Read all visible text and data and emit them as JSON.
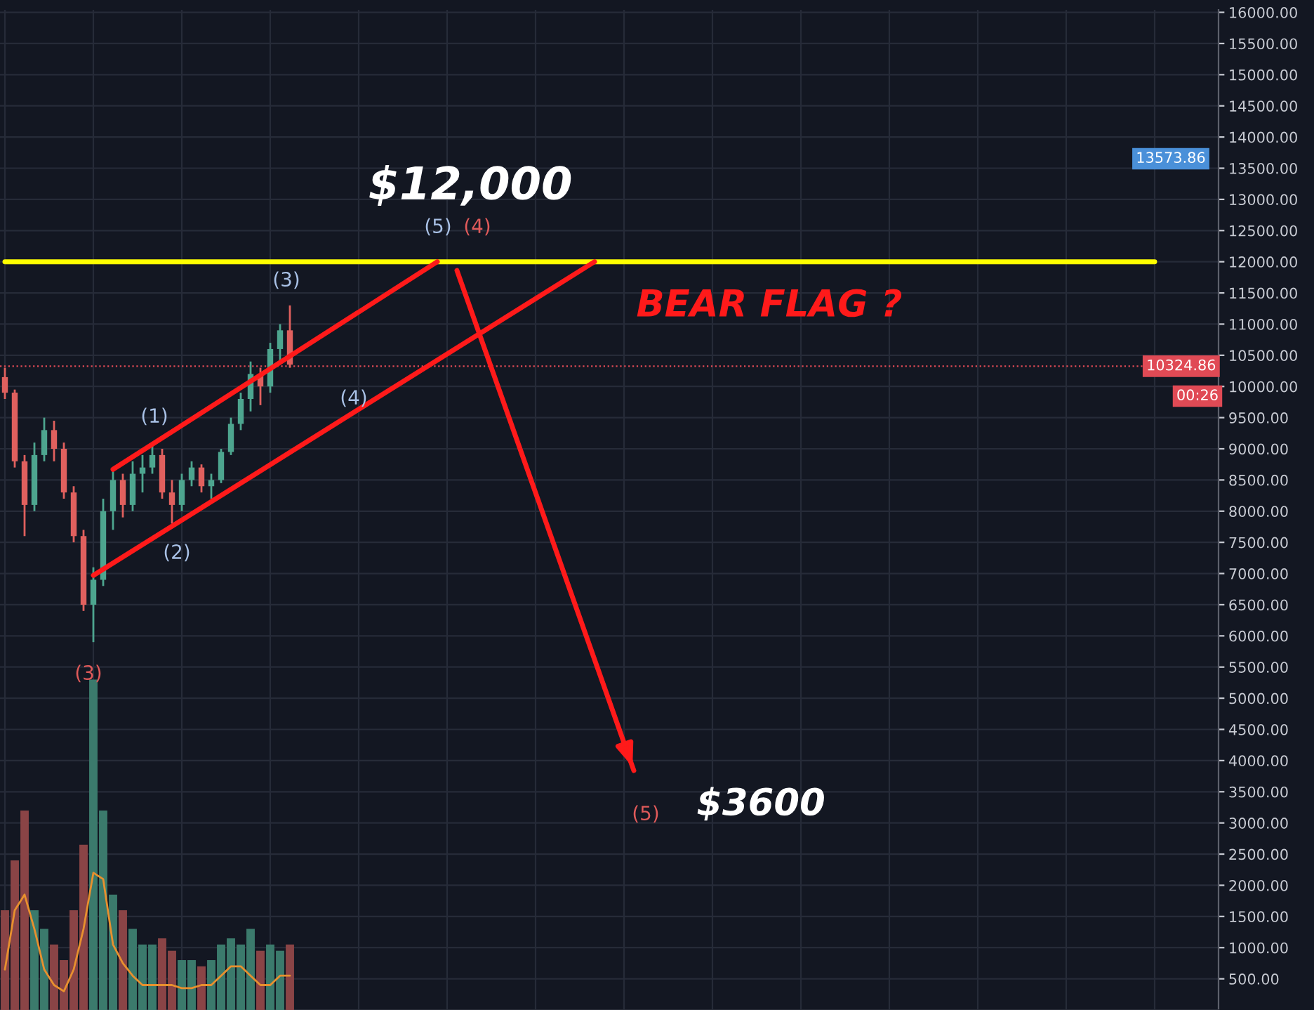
{
  "chart_data": [
    {
      "type": "candlestick",
      "categories": [
        null,
        null,
        null,
        null,
        null,
        null,
        null,
        null,
        null,
        null,
        null,
        null,
        null,
        null,
        null,
        null,
        null,
        null,
        null,
        null,
        null,
        null,
        null,
        null,
        null,
        null,
        null,
        null,
        null,
        null,
        null,
        null,
        null,
        null,
        null,
        null,
        null,
        null,
        null,
        null,
        null,
        null,
        null,
        null,
        null,
        null,
        null,
        null,
        null,
        null,
        null,
        null,
        null,
        null,
        null,
        null,
        null,
        null,
        null,
        null,
        null,
        null,
        null,
        null,
        null,
        null,
        null,
        null,
        null,
        null,
        null,
        null,
        null,
        null,
        null,
        null,
        null,
        null,
        null,
        null,
        null,
        null,
        null,
        null,
        null,
        null,
        null,
        null,
        null,
        null,
        null,
        null,
        null,
        null,
        null,
        null,
        null,
        null,
        null,
        null,
        null,
        null,
        null,
        null,
        null,
        null,
        null,
        null,
        null,
        null,
        null,
        null,
        null,
        null,
        null,
        null,
        null,
        null,
        null,
        null,
        null,
        null,
        null,
        null
      ],
      "ohlc": [
        [
          10150,
          10300,
          9800,
          9900
        ],
        [
          9900,
          9950,
          8700,
          8800
        ],
        [
          8800,
          8900,
          7600,
          8100
        ],
        [
          8100,
          9100,
          8000,
          8900
        ],
        [
          8900,
          9500,
          8800,
          9300
        ],
        [
          9300,
          9450,
          8800,
          9000
        ],
        [
          9000,
          9100,
          8200,
          8300
        ],
        [
          8300,
          8400,
          7500,
          7600
        ],
        [
          7600,
          7700,
          6400,
          6500
        ],
        [
          6500,
          7100,
          5900,
          6900
        ],
        [
          6900,
          8200,
          6800,
          8000
        ],
        [
          8000,
          8700,
          7700,
          8500
        ],
        [
          8500,
          8600,
          7900,
          8100
        ],
        [
          8100,
          8800,
          8000,
          8600
        ],
        [
          8600,
          8900,
          8300,
          8700
        ],
        [
          8700,
          9100,
          8600,
          8900
        ],
        [
          8900,
          9000,
          8200,
          8300
        ],
        [
          8300,
          8500,
          7800,
          8100
        ],
        [
          8100,
          8600,
          8000,
          8500
        ],
        [
          8500,
          8800,
          8400,
          8700
        ],
        [
          8700,
          8750,
          8300,
          8400
        ],
        [
          8400,
          8600,
          8200,
          8500
        ],
        [
          8500,
          9000,
          8450,
          8950
        ],
        [
          8950,
          9500,
          8900,
          9400
        ],
        [
          9400,
          9900,
          9300,
          9800
        ],
        [
          9800,
          10400,
          9600,
          10200
        ],
        [
          10200,
          10300,
          9700,
          10000
        ],
        [
          10000,
          10700,
          9900,
          10600
        ],
        [
          10600,
          11000,
          10400,
          10900
        ],
        [
          10900,
          11300,
          10300,
          10350
        ],
        null,
        null,
        null,
        null,
        null,
        null,
        null,
        null,
        null,
        null,
        null,
        null,
        null,
        null,
        null,
        null,
        null,
        null,
        null,
        null,
        null,
        null,
        null,
        null,
        null,
        null,
        null,
        null,
        null,
        null,
        null,
        null,
        null,
        null,
        null,
        null,
        null,
        null,
        null,
        null,
        null,
        null,
        null,
        null,
        null,
        null,
        null,
        null,
        null,
        null,
        null,
        null,
        null,
        null,
        null,
        null,
        null,
        null,
        null,
        null,
        null,
        null,
        null,
        null,
        null,
        null,
        null,
        null,
        null,
        null,
        null,
        null,
        null,
        null,
        null,
        null,
        null,
        null,
        null,
        null,
        null,
        null,
        null,
        null,
        null,
        null,
        null,
        null,
        null,
        null,
        null,
        null,
        null,
        null
      ],
      "colors": [
        "#e0605e",
        "#e0605e",
        "#e0605e",
        "#4da58f",
        "#4da58f",
        "#e0605e",
        "#e0605e",
        "#e0605e",
        "#e0605e",
        "#4da58f",
        "#4da58f",
        "#4da58f",
        "#e0605e",
        "#4da58f",
        "#4da58f",
        "#4da58f",
        "#e0605e",
        "#e0605e",
        "#4da58f",
        "#4da58f",
        "#e0605e",
        "#4da58f",
        "#4da58f",
        "#4da58f",
        "#4da58f",
        "#4da58f",
        "#e0605e",
        "#4da58f",
        "#4da58f",
        "#e0605e",
        null,
        null,
        null,
        null,
        null,
        null,
        null,
        null,
        null,
        null,
        null,
        null,
        null,
        null,
        null,
        null,
        null,
        null,
        null,
        null,
        null,
        null,
        null,
        null,
        null,
        null,
        null,
        null,
        null,
        null,
        null,
        null,
        null,
        null,
        null,
        null,
        null,
        null,
        null,
        null,
        null,
        null,
        null,
        null,
        null,
        null,
        null,
        null,
        null,
        null,
        null,
        null,
        null,
        null,
        null,
        null,
        null,
        null,
        null,
        null,
        null,
        null,
        null,
        null,
        null,
        null,
        null,
        null,
        null,
        null,
        null,
        null,
        null,
        null,
        null,
        null,
        null,
        null,
        null,
        null,
        null,
        null,
        null,
        null,
        null,
        null,
        null,
        null,
        null,
        null,
        null,
        null,
        null,
        null
      ],
      "series": [
        {
          "type": "bar",
          "values": [
            1600,
            2400,
            3200,
            1600,
            1300,
            1050,
            800,
            1600,
            2650,
            5300,
            3200,
            1850,
            1600,
            1300,
            1050,
            1050,
            1150,
            950,
            800,
            800,
            700,
            800,
            1050,
            1150,
            1050,
            1300,
            950,
            1050,
            950,
            1050,
            null,
            null,
            null,
            null,
            null,
            null,
            null,
            null,
            null,
            null,
            null,
            null,
            null,
            null,
            null,
            null,
            null,
            null,
            null,
            null,
            null,
            null,
            null,
            null,
            null,
            null,
            null,
            null,
            null,
            null,
            null,
            null,
            null,
            null,
            null,
            null,
            null,
            null,
            null,
            null,
            null,
            null,
            null,
            null,
            null,
            null,
            null,
            null,
            null,
            null,
            null,
            null,
            null,
            null,
            null,
            null,
            null,
            null,
            null,
            null,
            null,
            null,
            null,
            null,
            null,
            null,
            null,
            null,
            null,
            null,
            null,
            null,
            null,
            null,
            null,
            null,
            null,
            null,
            null,
            null,
            null,
            null,
            null,
            null,
            null,
            null,
            null,
            null,
            null,
            null,
            null,
            null,
            null,
            null
          ],
          "colors": [
            "#8a4446",
            "#8a4446",
            "#8a4446",
            "#3b7a6c",
            "#3b7a6c",
            "#8a4446",
            "#8a4446",
            "#8a4446",
            "#8a4446",
            "#3b7a6c",
            "#3b7a6c",
            "#3b7a6c",
            "#8a4446",
            "#3b7a6c",
            "#3b7a6c",
            "#3b7a6c",
            "#8a4446",
            "#8a4446",
            "#3b7a6c",
            "#3b7a6c",
            "#8a4446",
            "#3b7a6c",
            "#3b7a6c",
            "#3b7a6c",
            "#3b7a6c",
            "#3b7a6c",
            "#8a4446",
            "#3b7a6c",
            "#3b7a6c",
            "#8a4446",
            null,
            null,
            null,
            null,
            null,
            null,
            null,
            null,
            null,
            null,
            null,
            null,
            null,
            null,
            null,
            null,
            null,
            null,
            null,
            null,
            null,
            null,
            null,
            null,
            null,
            null,
            null,
            null,
            null,
            null,
            null,
            null,
            null,
            null,
            null,
            null,
            null,
            null,
            null,
            null,
            null,
            null,
            null,
            null,
            null,
            null,
            null,
            null,
            null,
            null,
            null,
            null,
            null,
            null,
            null,
            null,
            null,
            null,
            null,
            null,
            null,
            null,
            null,
            null,
            null,
            null,
            null,
            null,
            null,
            null,
            null,
            null,
            null,
            null,
            null,
            null,
            null,
            null,
            null,
            null,
            null,
            null,
            null,
            null,
            null,
            null,
            null,
            null,
            null,
            null,
            null,
            null,
            null,
            null
          ]
        },
        {
          "type": "line",
          "color": "#e8902e",
          "values": [
            650,
            1600,
            1850,
            1300,
            650,
            400,
            300,
            650,
            1300,
            2200,
            2100,
            1050,
            750,
            550,
            400,
            400,
            400,
            400,
            350,
            350,
            400,
            400,
            550,
            700,
            700,
            550,
            400,
            400,
            550,
            550,
            null,
            null,
            null,
            null,
            null,
            null,
            null,
            null,
            null,
            null,
            null,
            null,
            null,
            null,
            null,
            null,
            null,
            null,
            null,
            null,
            null,
            null,
            null,
            null,
            null,
            null,
            null,
            null,
            null,
            null,
            null,
            null,
            null,
            null,
            null,
            null,
            null,
            null,
            null,
            null,
            null,
            null,
            null,
            null,
            null,
            null,
            null,
            null,
            null,
            null,
            null,
            null,
            null,
            null,
            null,
            null,
            null,
            null,
            null,
            null,
            null,
            null,
            null,
            null,
            null,
            null,
            null,
            null,
            null,
            null,
            null,
            null,
            null,
            null,
            null,
            null,
            null,
            null,
            null,
            null,
            null,
            null,
            null,
            null,
            null,
            null,
            null,
            null,
            null,
            null,
            null,
            null,
            null,
            null
          ]
        },
        {
          "type": "line",
          "color": "#ffff00",
          "values": [
            12000,
            null,
            null,
            null,
            null,
            null,
            null,
            null,
            null,
            null,
            null,
            null,
            null,
            null,
            null,
            null,
            null,
            null,
            null,
            null,
            null,
            null,
            null,
            null,
            null,
            null,
            null,
            null,
            null,
            null,
            null,
            null,
            null,
            null,
            null,
            null,
            null,
            null,
            null,
            null,
            null,
            null,
            null,
            null,
            null,
            null,
            null,
            null,
            null,
            null,
            null,
            null,
            null,
            null,
            null,
            null,
            null,
            null,
            null,
            null,
            null,
            null,
            null,
            null,
            null,
            null,
            null,
            null,
            null,
            null,
            null,
            null,
            null,
            null,
            null,
            null,
            null,
            null,
            null,
            null,
            null,
            null,
            null,
            null,
            null,
            null,
            null,
            null,
            null,
            null,
            null,
            null,
            null,
            null,
            null,
            null,
            null,
            null,
            null,
            null,
            null,
            null,
            null,
            null,
            null,
            null,
            null,
            null,
            null,
            null,
            null,
            null,
            null,
            null,
            null,
            null,
            null,
            12000,
            null,
            null,
            null,
            null,
            null,
            null
          ]
        },
        {
          "type": "line",
          "color": "#ff1a1a",
          "values": [
            null,
            null,
            null,
            null,
            null,
            null,
            null,
            null,
            null,
            null,
            null,
            8670,
            null,
            null,
            null,
            null,
            null,
            null,
            null,
            null,
            null,
            null,
            null,
            null,
            null,
            null,
            null,
            null,
            null,
            null,
            null,
            null,
            null,
            null,
            null,
            null,
            null,
            null,
            null,
            null,
            null,
            null,
            null,
            null,
            12000,
            null,
            null,
            null,
            null,
            null,
            null,
            null,
            null,
            null,
            null,
            null,
            null,
            null,
            null,
            null,
            null,
            null,
            null,
            null,
            null,
            null,
            null,
            null,
            null,
            null,
            null,
            null,
            null,
            null,
            null,
            null,
            null,
            null,
            null,
            null,
            null,
            null,
            null,
            null,
            null,
            null,
            null,
            null,
            null,
            null,
            null,
            null,
            null,
            null,
            null,
            null,
            null,
            null,
            null,
            null,
            null,
            null,
            null,
            null,
            null,
            null,
            null,
            null,
            null,
            null,
            null,
            null,
            null,
            null,
            null,
            null,
            null,
            null,
            null,
            null,
            null,
            null,
            null,
            null
          ]
        },
        {
          "type": "line",
          "color": "#ff1a1a",
          "values": [
            null,
            null,
            null,
            null,
            null,
            null,
            null,
            null,
            null,
            6970,
            null,
            null,
            null,
            null,
            null,
            null,
            null,
            null,
            null,
            null,
            null,
            null,
            null,
            null,
            null,
            null,
            null,
            null,
            null,
            null,
            null,
            null,
            null,
            null,
            null,
            null,
            null,
            null,
            null,
            null,
            null,
            null,
            null,
            null,
            null,
            null,
            null,
            null,
            null,
            null,
            null,
            null,
            null,
            null,
            null,
            null,
            null,
            null,
            null,
            null,
            12000,
            null,
            null,
            null,
            null,
            null,
            null,
            null,
            null,
            null,
            null,
            null,
            null,
            null,
            null,
            null,
            null,
            null,
            null,
            null,
            null,
            null,
            null,
            null,
            null,
            null,
            null,
            null,
            null,
            null,
            null,
            null,
            null,
            null,
            null,
            null,
            null,
            null,
            null,
            null,
            null,
            null,
            null,
            null,
            null,
            null,
            null,
            null,
            null,
            null,
            null,
            null,
            null,
            null,
            null,
            null,
            null,
            null,
            null,
            null,
            null,
            null,
            null,
            null
          ]
        },
        {
          "type": "line",
          "color": "#ff1a1a",
          "values": [
            null,
            null,
            null,
            null,
            null,
            null,
            null,
            null,
            null,
            null,
            null,
            null,
            null,
            null,
            null,
            null,
            null,
            null,
            null,
            null,
            null,
            null,
            null,
            null,
            null,
            null,
            null,
            null,
            null,
            null,
            null,
            null,
            null,
            null,
            null,
            null,
            null,
            null,
            null,
            null,
            null,
            null,
            null,
            null,
            null,
            null,
            11860,
            null,
            null,
            null,
            null,
            null,
            null,
            null,
            null,
            null,
            null,
            null,
            null,
            null,
            null,
            null,
            null,
            null,
            3840,
            null,
            null,
            null,
            null,
            null,
            null,
            null,
            null,
            null,
            null,
            null,
            null,
            null,
            null,
            null,
            null,
            null,
            null,
            null,
            null,
            null,
            null,
            null,
            null,
            null,
            null,
            null,
            null,
            null,
            null,
            null,
            null,
            null,
            null,
            null,
            null,
            null,
            null,
            null,
            null,
            null,
            null,
            null,
            null,
            null,
            null,
            null,
            null,
            null,
            null,
            null,
            null,
            null,
            null,
            null,
            null,
            null,
            null,
            null
          ]
        }
      ],
      "ylim": [
        0,
        16040
      ],
      "yticks": [
        {
          "value": 500,
          "label": "500.00"
        },
        {
          "value": 1000,
          "label": "1000.00"
        },
        {
          "value": 1500,
          "label": "1500.00"
        },
        {
          "value": 2000,
          "label": "2000.00"
        },
        {
          "value": 2500,
          "label": "2500.00"
        },
        {
          "value": 3000,
          "label": "3000.00"
        },
        {
          "value": 3500,
          "label": "3500.00"
        },
        {
          "value": 4000,
          "label": "4000.00"
        },
        {
          "value": 4500,
          "label": "4500.00"
        },
        {
          "value": 5000,
          "label": "5000.00"
        },
        {
          "value": 5500,
          "label": "5500.00"
        },
        {
          "value": 6000,
          "label": "6000.00"
        },
        {
          "value": 6500,
          "label": "6500.00"
        },
        {
          "value": 7000,
          "label": "7000.00"
        },
        {
          "value": 7500,
          "label": "7500.00"
        },
        {
          "value": 8000,
          "label": "8000.00"
        },
        {
          "value": 8500,
          "label": "8500.00"
        },
        {
          "value": 9000,
          "label": "9000.00"
        },
        {
          "value": 9500,
          "label": "9500.00"
        },
        {
          "value": 10000,
          "label": "10000.00"
        },
        {
          "value": 10500,
          "label": "10500.00"
        },
        {
          "value": 11000,
          "label": "11000.00"
        },
        {
          "value": 11500,
          "label": "11500.00"
        },
        {
          "value": 12000,
          "label": "12000.00"
        },
        {
          "value": 12500,
          "label": "12500.00"
        },
        {
          "value": 13000,
          "label": "13000.00"
        },
        {
          "value": 13500,
          "label": "13500.00"
        },
        {
          "value": 14000,
          "label": "14000.00"
        },
        {
          "value": 14500,
          "label": "14500.00"
        },
        {
          "value": 15000,
          "label": "15000.00"
        },
        {
          "value": 15500,
          "label": "15500.00"
        },
        {
          "value": 16000,
          "label": "16000.00"
        }
      ],
      "grid": true,
      "ref_lines": [
        {
          "axis": "y",
          "value": 10324.86,
          "label": "10324.86",
          "color": "#e04a55",
          "line_style": "dotted"
        }
      ],
      "annotations": [
        "$12,000",
        "(5)",
        "(4)",
        "(3)",
        "BEAR FLAG ?",
        "(1)",
        "(4)",
        "(2)",
        "(3)",
        "(5)",
        "$3600",
        "00:26",
        "13573.86"
      ]
    }
  ]
}
